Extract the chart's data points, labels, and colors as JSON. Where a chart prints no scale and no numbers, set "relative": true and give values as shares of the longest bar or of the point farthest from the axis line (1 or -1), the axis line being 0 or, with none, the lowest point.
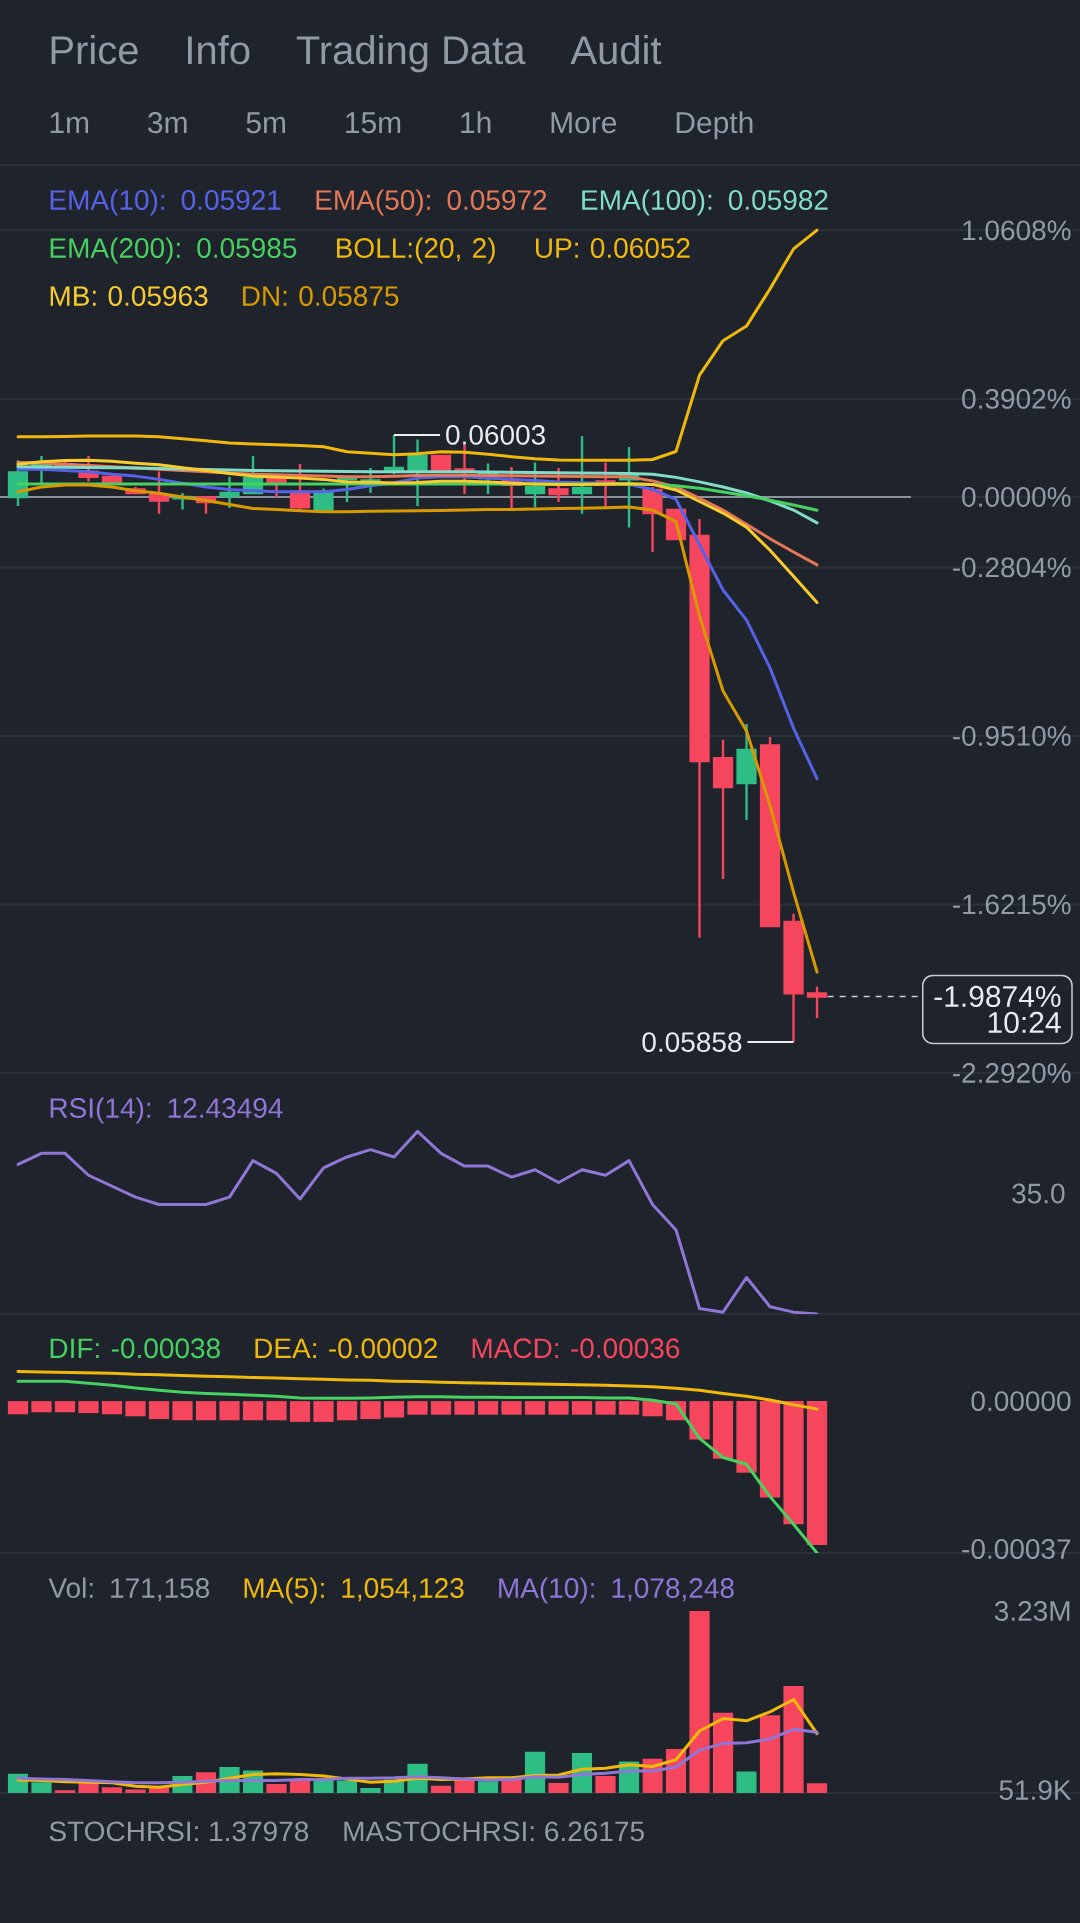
{
  "chart_data": [
    {
      "type": "other",
      "annotations": [
        "Price",
        "Info",
        "Trading Data",
        "Audit"
      ]
    },
    {
      "type": "other",
      "annotations": [
        "1m",
        "3m",
        "5m",
        "15m",
        "1h",
        "More",
        "Depth"
      ]
    },
    {
      "type": "candlestick",
      "categories": [
        null,
        null,
        null,
        null,
        null,
        null,
        null,
        null,
        null,
        null,
        null,
        null,
        null,
        null,
        null,
        null,
        null,
        null,
        null,
        null,
        null,
        null,
        null,
        null,
        null,
        null,
        null,
        null,
        null,
        null,
        null,
        null,
        null,
        null,
        null
      ],
      "ohlc": [
        [
          0.0,
          0.146,
          -0.036,
          0.098
        ],
        [
          0.124,
          0.163,
          0.052,
          0.131
        ],
        [
          0.13,
          0.14,
          0.115,
          0.125
        ],
        [
          0.101,
          0.163,
          0.062,
          0.08
        ],
        [
          0.08,
          0.085,
          0.039,
          0.053
        ],
        [
          0.03,
          0.04,
          0.01,
          0.016
        ],
        [
          0.007,
          0.101,
          -0.067,
          -0.014
        ],
        [
          -0.005,
          0.016,
          -0.05,
          0.0
        ],
        [
          -0.002,
          -0.002,
          -0.067,
          -0.02
        ],
        [
          0.004,
          0.08,
          -0.044,
          0.016
        ],
        [
          0.016,
          0.163,
          0.012,
          0.075
        ],
        [
          0.071,
          0.075,
          -0.002,
          0.052
        ],
        [
          0.021,
          0.131,
          -0.05,
          -0.041
        ],
        [
          -0.05,
          0.034,
          -0.05,
          0.021
        ],
        [
          0.07,
          0.08,
          -0.02,
          0.08
        ],
        [
          0.053,
          0.115,
          0.016,
          0.066
        ],
        [
          0.101,
          0.247,
          0.09,
          0.115
        ],
        [
          0.105,
          0.229,
          -0.036,
          0.163
        ],
        [
          0.163,
          0.165,
          0.1,
          0.105
        ],
        [
          0.11,
          0.208,
          0.012,
          0.1
        ],
        [
          0.075,
          0.133,
          0.012,
          0.092
        ],
        [
          0.066,
          0.119,
          -0.05,
          0.048
        ],
        [
          0.016,
          0.137,
          -0.041,
          0.039
        ],
        [
          0.03,
          0.115,
          -0.02,
          0.012
        ],
        [
          0.016,
          0.243,
          -0.067,
          0.036
        ],
        [
          0.062,
          0.137,
          -0.041,
          0.048
        ],
        [
          0.07,
          0.199,
          -0.121,
          0.084
        ],
        [
          0.028,
          0.04,
          -0.219,
          -0.064
        ],
        [
          -0.052,
          -0.052,
          -0.17,
          -0.167
        ],
        [
          -0.155,
          -0.088,
          -1.754,
          -1.051
        ],
        [
          -1.039,
          -0.966,
          -1.52,
          -1.154
        ],
        [
          -1.138,
          -0.903,
          -1.285,
          -1.007
        ],
        [
          -0.989,
          -0.955,
          -1.71,
          -1.707
        ],
        [
          -1.691,
          -1.658,
          -2.169,
          -1.975
        ],
        [
          -1.975,
          -1.948,
          -2.073,
          -1.9874
        ]
      ],
      "colors": [
        "#2ebd85",
        "#2ebd85",
        "#f6465d",
        "#f6465d",
        "#f6465d",
        "#f6465d",
        "#f6465d",
        "#2ebd85",
        "#f6465d",
        "#2ebd85",
        "#2ebd85",
        "#f6465d",
        "#f6465d",
        "#2ebd85",
        "#2ebd85",
        "#2ebd85",
        "#2ebd85",
        "#2ebd85",
        "#f6465d",
        "#f6465d",
        "#2ebd85",
        "#f6465d",
        "#2ebd85",
        "#f6465d",
        "#2ebd85",
        "#f6465d",
        "#2ebd85",
        "#f6465d",
        "#f6465d",
        "#f6465d",
        "#f6465d",
        "#2ebd85",
        "#f6465d",
        "#f6465d",
        "#f6465d"
      ],
      "series": [
        {
          "name": "EMA(10): 0.05921",
          "type": "line",
          "color": "#5663e8",
          "values": [
            0.11,
            0.11,
            0.105,
            0.1,
            0.09,
            0.083,
            0.07,
            0.055,
            0.04,
            0.03,
            0.025,
            0.021,
            0.021,
            0.021,
            0.03,
            0.045,
            0.057,
            0.075,
            0.08,
            0.08,
            0.075,
            0.07,
            0.066,
            0.06,
            0.057,
            0.055,
            0.05,
            0.03,
            -0.01,
            -0.19,
            -0.37,
            -0.49,
            -0.68,
            -0.92,
            -1.121
          ]
        },
        {
          "name": "EMA(50): 0.05972",
          "type": "line",
          "color": "#e57856",
          "values": [
            0.137,
            0.135,
            0.13,
            0.125,
            0.12,
            0.115,
            0.11,
            0.105,
            0.1,
            0.095,
            0.09,
            0.088,
            0.085,
            0.083,
            0.08,
            0.08,
            0.082,
            0.085,
            0.086,
            0.086,
            0.085,
            0.084,
            0.083,
            0.082,
            0.081,
            0.08,
            0.08,
            0.064,
            0.04,
            -0.005,
            -0.052,
            -0.109,
            -0.166,
            -0.219,
            -0.27
          ]
        },
        {
          "name": "EMA(100): 0.05982",
          "type": "line",
          "color": "#82dcc8",
          "values": [
            0.12,
            0.119,
            0.118,
            0.117,
            0.116,
            0.115,
            0.113,
            0.111,
            0.109,
            0.107,
            0.105,
            0.104,
            0.103,
            0.102,
            0.101,
            0.1,
            0.1,
            0.1,
            0.1,
            0.1,
            0.099,
            0.098,
            0.097,
            0.096,
            0.095,
            0.094,
            0.093,
            0.09,
            0.078,
            0.06,
            0.04,
            0.016,
            -0.015,
            -0.052,
            -0.103
          ]
        },
        {
          "name": "EMA(200): 0.05985",
          "type": "line",
          "color": "#46d160",
          "values": [
            0.052,
            0.052,
            0.052,
            0.052,
            0.052,
            0.052,
            0.052,
            0.052,
            0.052,
            0.052,
            0.052,
            0.052,
            0.052,
            0.052,
            0.052,
            0.052,
            0.052,
            0.052,
            0.052,
            0.052,
            0.052,
            0.052,
            0.052,
            0.052,
            0.052,
            0.052,
            0.052,
            0.05,
            0.045,
            0.035,
            0.02,
            0.005,
            -0.013,
            -0.032,
            -0.053
          ]
        },
        {
          "name": "UP: 0.06052",
          "type": "line",
          "color": "#f0b90b",
          "values": [
            0.24,
            0.24,
            0.241,
            0.243,
            0.243,
            0.243,
            0.24,
            0.232,
            0.224,
            0.215,
            0.211,
            0.208,
            0.205,
            0.2,
            0.18,
            0.174,
            0.168,
            0.172,
            0.18,
            0.178,
            0.17,
            0.16,
            0.152,
            0.147,
            0.146,
            0.146,
            0.146,
            0.149,
            0.181,
            0.485,
            0.622,
            0.68,
            0.828,
            0.987,
            1.062
          ]
        },
        {
          "name": "MB: 0.05963",
          "type": "line",
          "color": "#f8cc2c",
          "values": [
            0.13,
            0.14,
            0.145,
            0.146,
            0.142,
            0.134,
            0.128,
            0.116,
            0.105,
            0.093,
            0.083,
            0.079,
            0.075,
            0.07,
            0.06,
            0.059,
            0.056,
            0.058,
            0.063,
            0.063,
            0.06,
            0.055,
            0.052,
            0.05,
            0.05,
            0.052,
            0.053,
            0.05,
            0.028,
            -0.018,
            -0.064,
            -0.12,
            -0.212,
            -0.315,
            -0.42
          ]
        },
        {
          "name": "DN: 0.05875",
          "type": "line",
          "color": "#d89a00",
          "values": [
            0.021,
            0.04,
            0.048,
            0.048,
            0.04,
            0.025,
            0.015,
            0.0,
            -0.014,
            -0.03,
            -0.046,
            -0.05,
            -0.055,
            -0.059,
            -0.059,
            -0.057,
            -0.056,
            -0.055,
            -0.054,
            -0.052,
            -0.05,
            -0.05,
            -0.048,
            -0.046,
            -0.045,
            -0.043,
            -0.04,
            -0.052,
            -0.098,
            -0.474,
            -0.772,
            -0.931,
            -1.228,
            -1.572,
            -1.89
          ]
        }
      ],
      "ylim": [
        -2.292,
        1.321
      ],
      "yticks": [
        {
          "value": 1.0608,
          "label": "1.0608%"
        },
        {
          "value": 0.3902,
          "label": "0.3902%"
        },
        {
          "value": 0,
          "label": "0.0000%"
        },
        {
          "value": -0.2804,
          "label": "-0.2804%"
        },
        {
          "value": -0.951,
          "label": "-0.9510%"
        },
        {
          "value": -1.6215,
          "label": "-1.6215%"
        },
        {
          "value": -2.292,
          "label": "-2.2920%"
        }
      ],
      "grid": "y",
      "legend_title": "BOLL:(20, 2)",
      "ref_lines": [
        {
          "axis": "y",
          "value": 0,
          "color": "#8c929c"
        },
        {
          "axis": "y",
          "value": -1.9874,
          "label": "-1.9874%",
          "line_style": "dashed",
          "color": "#c8ccd2"
        }
      ],
      "annotations": [
        "0.06003",
        "0.05858",
        "10:24"
      ]
    },
    {
      "type": "line",
      "categories": [
        null,
        null,
        null,
        null,
        null,
        null,
        null,
        null,
        null,
        null,
        null,
        null,
        null,
        null,
        null,
        null,
        null,
        null,
        null,
        null,
        null,
        null,
        null,
        null,
        null,
        null,
        null,
        null,
        null,
        null,
        null,
        null,
        null,
        null,
        null
      ],
      "relative": true,
      "series": [
        {
          "name": "RSI(14): 12.43494",
          "color": "#9076d6",
          "values": [
            0.82,
            0.88,
            0.88,
            0.76,
            0.7,
            0.64,
            0.6,
            0.6,
            0.6,
            0.64,
            0.84,
            0.77,
            0.63,
            0.8,
            0.86,
            0.9,
            0.86,
            1.0,
            0.88,
            0.81,
            0.81,
            0.75,
            0.79,
            0.72,
            0.79,
            0.76,
            0.84,
            0.6,
            0.46,
            0.03,
            0.01,
            0.2,
            0.04,
            0.01,
            0.0
          ]
        }
      ],
      "annotations": [
        "35.0"
      ]
    },
    {
      "type": "bar",
      "categories": [
        null,
        null,
        null,
        null,
        null,
        null,
        null,
        null,
        null,
        null,
        null,
        null,
        null,
        null,
        null,
        null,
        null,
        null,
        null,
        null,
        null,
        null,
        null,
        null,
        null,
        null,
        null,
        null,
        null,
        null,
        null,
        null,
        null,
        null,
        null
      ],
      "series": [
        {
          "name": "DIF: -0.00038",
          "type": "line",
          "color": "#46d160",
          "values": [
            5e-05,
            5e-05,
            5e-05,
            4.5e-05,
            4e-05,
            3.3e-05,
            2.7e-05,
            2.2e-05,
            1.9e-05,
            1.7e-05,
            1.5e-05,
            1.2e-05,
            8e-06,
            7e-06,
            7e-06,
            8e-06,
            1e-05,
            1.1e-05,
            1.1e-05,
            1e-05,
            1e-05,
            9e-06,
            9e-06,
            9e-06,
            9e-06,
            8e-06,
            8e-06,
            2e-06,
            -7e-06,
            -9.3e-05,
            -0.000141,
            -0.000158,
            -0.000239,
            -0.000308,
            -0.00038
          ]
        },
        {
          "name": "DEA: -0.00002",
          "type": "line",
          "color": "#f0b90b",
          "values": [
            7.4e-05,
            7.3e-05,
            7.2e-05,
            7.1e-05,
            7e-05,
            6.7e-05,
            6.6e-05,
            6.4e-05,
            6.2e-05,
            6.1e-05,
            5.9e-05,
            5.8e-05,
            5.6e-05,
            5.5e-05,
            5.3e-05,
            5.2e-05,
            5e-05,
            4.9e-05,
            4.7e-05,
            4.6e-05,
            4.5e-05,
            4.4e-05,
            4.3e-05,
            4.2e-05,
            4.1e-05,
            4e-05,
            3.8e-05,
            3.6e-05,
            3.2e-05,
            2.7e-05,
            1.9e-05,
            1.2e-05,
            3e-06,
            -9e-06,
            -2e-05
          ]
        },
        {
          "name": "MACD: -0.00036",
          "type": "bar",
          "color": "#f6465d",
          "values": [
            -3.3e-05,
            -2.8e-05,
            -2.8e-05,
            -3e-05,
            -3.3e-05,
            -3.8e-05,
            -4.5e-05,
            -4.8e-05,
            -4.8e-05,
            -4.8e-05,
            -4.8e-05,
            -4.8e-05,
            -5.2e-05,
            -5.2e-05,
            -4.8e-05,
            -4.5e-05,
            -4.1e-05,
            -3.4e-05,
            -3.4e-05,
            -3.4e-05,
            -3.4e-05,
            -3.4e-05,
            -3.4e-05,
            -3.4e-05,
            -3.4e-05,
            -3.4e-05,
            -3.4e-05,
            -3.8e-05,
            -4.8e-05,
            -9.6e-05,
            -0.000144,
            -0.000179,
            -0.000241,
            -0.000308,
            -0.00036
          ]
        }
      ],
      "ylim": [
        -0.00038,
        0.000218
      ],
      "yticks": [
        {
          "value": 0,
          "label": "0.00000"
        },
        {
          "value": -0.00037,
          "label": "-0.00037"
        }
      ]
    },
    {
      "type": "bar",
      "title": "Vol: 171,158",
      "categories": [
        null,
        null,
        null,
        null,
        null,
        null,
        null,
        null,
        null,
        null,
        null,
        null,
        null,
        null,
        null,
        null,
        null,
        null,
        null,
        null,
        null,
        null,
        null,
        null,
        null,
        null,
        null,
        null,
        null,
        null,
        null,
        null,
        null,
        null,
        null
      ],
      "series": [
        {
          "type": "bar",
          "colors": [
            "#2ebd85",
            "#2ebd85",
            "#f6465d",
            "#f6465d",
            "#f6465d",
            "#f6465d",
            "#f6465d",
            "#2ebd85",
            "#f6465d",
            "#2ebd85",
            "#2ebd85",
            "#f6465d",
            "#f6465d",
            "#2ebd85",
            "#2ebd85",
            "#2ebd85",
            "#2ebd85",
            "#2ebd85",
            "#f6465d",
            "#f6465d",
            "#2ebd85",
            "#f6465d",
            "#2ebd85",
            "#f6465d",
            "#2ebd85",
            "#f6465d",
            "#2ebd85",
            "#f6465d",
            "#f6465d",
            "#f6465d",
            "#f6465d",
            "#2ebd85",
            "#f6465d",
            "#f6465d",
            "#f6465d"
          ],
          "values": [
            340000,
            190000,
            50000,
            190000,
            100000,
            60000,
            100000,
            300000,
            370000,
            460000,
            400000,
            160000,
            240000,
            240000,
            220000,
            90000,
            240000,
            520000,
            130000,
            240000,
            210000,
            260000,
            730000,
            180000,
            710000,
            300000,
            560000,
            610000,
            780000,
            3230000,
            1430000,
            380000,
            1380000,
            1900000,
            171158
          ]
        },
        {
          "name": "MA(5): 1,054,123",
          "type": "line",
          "color": "#f0b90b",
          "values": [
            230000,
            220000,
            200000,
            190000,
            180000,
            120000,
            100000,
            150000,
            190000,
            260000,
            330000,
            340000,
            330000,
            300000,
            250000,
            190000,
            210000,
            260000,
            240000,
            250000,
            270000,
            270000,
            310000,
            320000,
            420000,
            440000,
            500000,
            470000,
            590000,
            1100000,
            1320000,
            1280000,
            1440000,
            1660000,
            1054123
          ]
        },
        {
          "name": "MA(10): 1,078,248",
          "type": "line",
          "color": "#9076d6",
          "values": [
            260000,
            250000,
            240000,
            220000,
            200000,
            180000,
            180000,
            190000,
            210000,
            220000,
            220000,
            220000,
            240000,
            240000,
            260000,
            260000,
            270000,
            290000,
            270000,
            250000,
            230000,
            240000,
            290000,
            280000,
            330000,
            350000,
            390000,
            390000,
            460000,
            760000,
            880000,
            890000,
            960000,
            1130000,
            1078248
          ]
        }
      ],
      "ylim": [
        0,
        3230000
      ],
      "yticks": [
        {
          "value": 3230000,
          "label": "3.23M"
        },
        {
          "value": 51900,
          "label": "51.9K"
        }
      ]
    },
    {
      "type": "other",
      "annotations": [
        "STOCHRSI: 1.37978",
        "MASTOCHRSI: 6.26175"
      ]
    }
  ]
}
